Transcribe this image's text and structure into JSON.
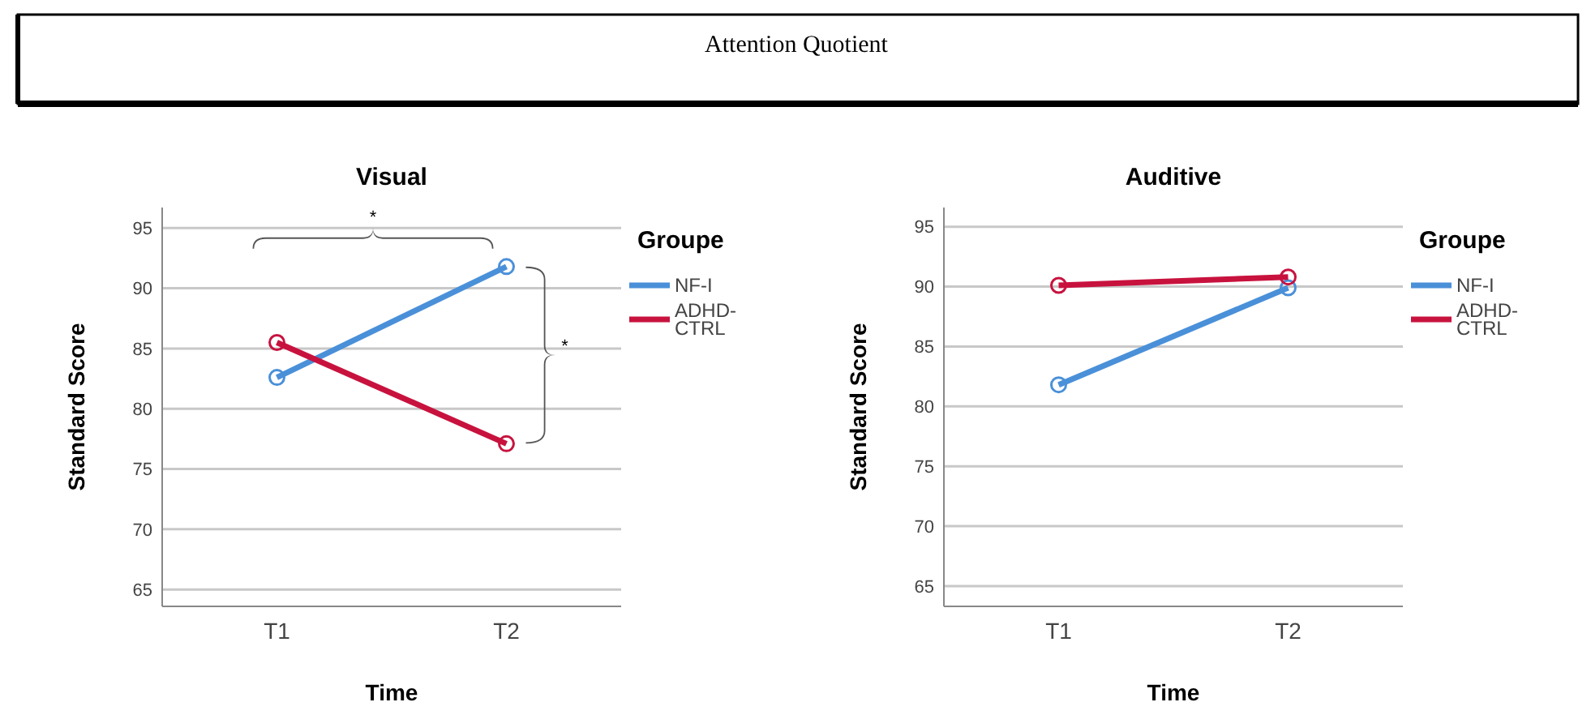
{
  "chart_data": [
    {
      "type": "other",
      "title": "Attention Quotient"
    },
    {
      "type": "line",
      "title": "Visual",
      "xlabel": "Time",
      "ylabel": "Standard Score",
      "legend_title": "Groupe",
      "categories": [
        "T1",
        "T2"
      ],
      "series": [
        {
          "name": "NF-I",
          "color": "#4a90d9",
          "values": [
            82.6,
            91.8
          ]
        },
        {
          "name": "ADHD-CTRL",
          "color": "#c8123e",
          "values": [
            85.5,
            77.1
          ]
        }
      ],
      "ylim": [
        63.6,
        96.7
      ],
      "yticks": [
        65,
        70,
        75,
        80,
        85,
        90,
        95
      ],
      "grid": "y",
      "legend": "right",
      "marker": "circle",
      "annotations": [
        "*",
        "*"
      ]
    },
    {
      "type": "line",
      "title": "Auditive",
      "xlabel": "Time",
      "ylabel": "Standard Score",
      "legend_title": "Groupe",
      "categories": [
        "T1",
        "T2"
      ],
      "series": [
        {
          "name": "NF-I",
          "color": "#4a90d9",
          "values": [
            81.8,
            89.9
          ]
        },
        {
          "name": "ADHD-CTRL",
          "color": "#c8123e",
          "values": [
            90.1,
            90.8
          ]
        }
      ],
      "ylim": [
        63.3,
        96.6
      ],
      "yticks": [
        65,
        70,
        75,
        80,
        85,
        90,
        95
      ],
      "grid": "y",
      "legend": "right",
      "marker": "circle"
    }
  ]
}
